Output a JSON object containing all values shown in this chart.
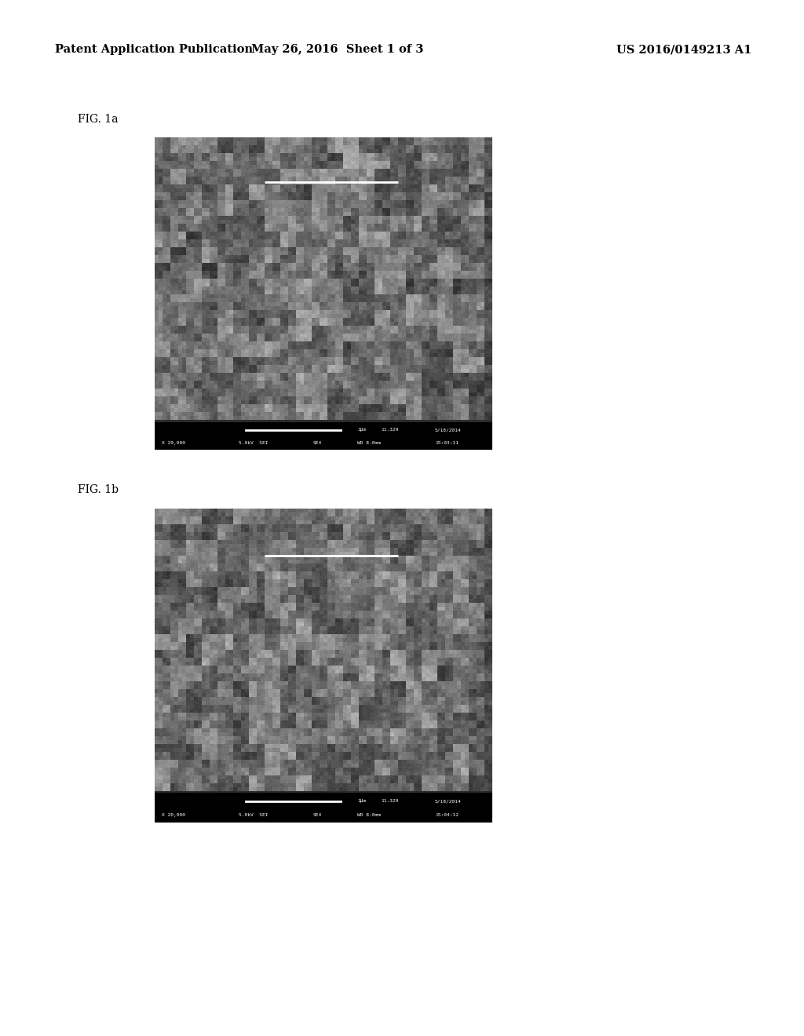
{
  "background_color": "#ffffff",
  "header_left": "Patent Application Publication",
  "header_mid": "May 26, 2016  Sheet 1 of 3",
  "header_right": "US 2016/0149213 A1",
  "header_fontsize": 10.5,
  "fig1a_label": "FIG. 1a",
  "fig1b_label": "FIG. 1b",
  "bar1_text_line1": "                                                        1μm   11.329   5/18/2014",
  "bar1_text_line2": "X 29,000     5.0kV  SEI      SE4      WD 8.0mm  15:03:11",
  "bar2_text_line1": "                                                        1μm   11.329   5/18/2014",
  "bar2_text_line2": "X 20,000     5.0kV  SEI      SE4      WD 8.0mm  15:04:12",
  "seed1": 42,
  "seed2": 77
}
